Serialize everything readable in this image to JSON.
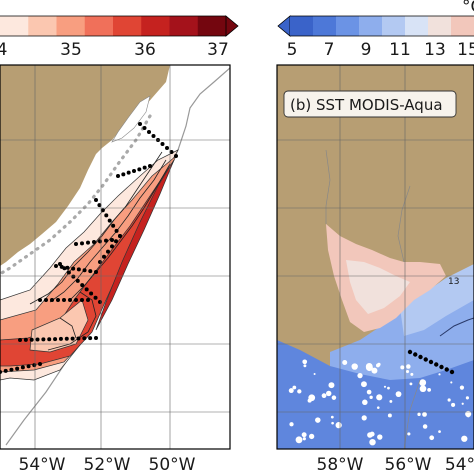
{
  "colors": {
    "land": "#b79e73",
    "ocean_white": "#ffffff",
    "left_scale": [
      "#fde8de",
      "#fbc7b0",
      "#f89e80",
      "#f0705a",
      "#e04534",
      "#c5221f",
      "#a4121b",
      "#74060f"
    ],
    "right_scale": [
      "#3a63c9",
      "#4d78d8",
      "#6b93e5",
      "#8eaeed",
      "#b3c9f2",
      "#d8e3f6",
      "#f1e1dc",
      "#f2c7bb"
    ]
  },
  "left_panel": {
    "colorbar": {
      "tick_labels": [
        "4",
        "35",
        "36",
        "37"
      ]
    },
    "lon_labels": [
      "54°W",
      "52°W",
      "50°W"
    ]
  },
  "right_panel": {
    "colorbar": {
      "tick_labels": [
        "5",
        "7",
        "9",
        "11",
        "13",
        "15"
      ],
      "unit_fragment": "°C"
    },
    "title": "(b) SST MODIS-Aqua",
    "isotherm_label": "13",
    "lon_labels": [
      "58°W",
      "56°W",
      "54°"
    ]
  }
}
